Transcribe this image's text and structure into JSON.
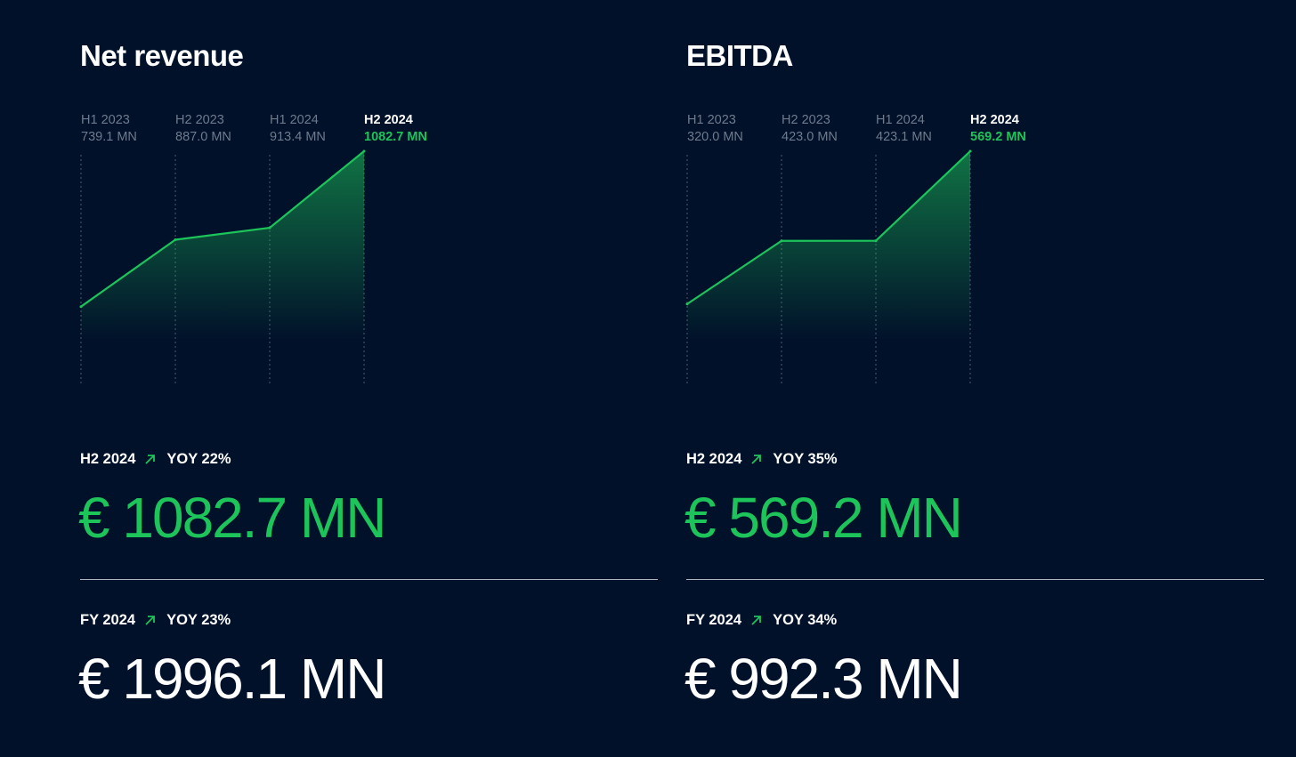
{
  "panels": [
    {
      "title": "Net revenue",
      "h2": {
        "period": "H2 2024",
        "yoy": "YOY 22%",
        "value": "€ 1082.7 MN"
      },
      "fy": {
        "period": "FY 2024",
        "yoy": "YOY 23%",
        "value": "€ 1996.1 MN"
      }
    },
    {
      "title": "EBITDA",
      "h2": {
        "period": "H2 2024",
        "yoy": "YOY 35%",
        "value": "€ 569.2 MN"
      },
      "fy": {
        "period": "FY 2024",
        "yoy": "YOY 34%",
        "value": "€ 992.3 MN"
      }
    }
  ],
  "colors": {
    "background": "#01112a",
    "accent": "#1dc45a",
    "muted": "#6f7a8c"
  },
  "icons": {
    "trend": "arrow-up-right-icon"
  },
  "chart_data": [
    {
      "type": "area",
      "title": "Net revenue",
      "categories": [
        "H1 2023",
        "H2 2023",
        "H1 2024",
        "H2 2024"
      ],
      "values": [
        739.1,
        887.0,
        913.4,
        1082.7
      ],
      "value_labels": [
        "739.1 MN",
        "887.0 MN",
        "913.4 MN",
        "1082.7 MN"
      ],
      "unit": "MN",
      "ylim": [
        650,
        1082.7
      ],
      "grid": "vertical-dotted",
      "highlight": "last"
    },
    {
      "type": "area",
      "title": "EBITDA",
      "categories": [
        "H1 2023",
        "H2 2023",
        "H1 2024",
        "H2 2024"
      ],
      "values": [
        320.0,
        423.0,
        423.1,
        569.2
      ],
      "value_labels": [
        "320.0 MN",
        "423.0 MN",
        "423.1 MN",
        "569.2 MN"
      ],
      "unit": "MN",
      "ylim": [
        250,
        569.2
      ],
      "grid": "vertical-dotted",
      "highlight": "last"
    }
  ]
}
